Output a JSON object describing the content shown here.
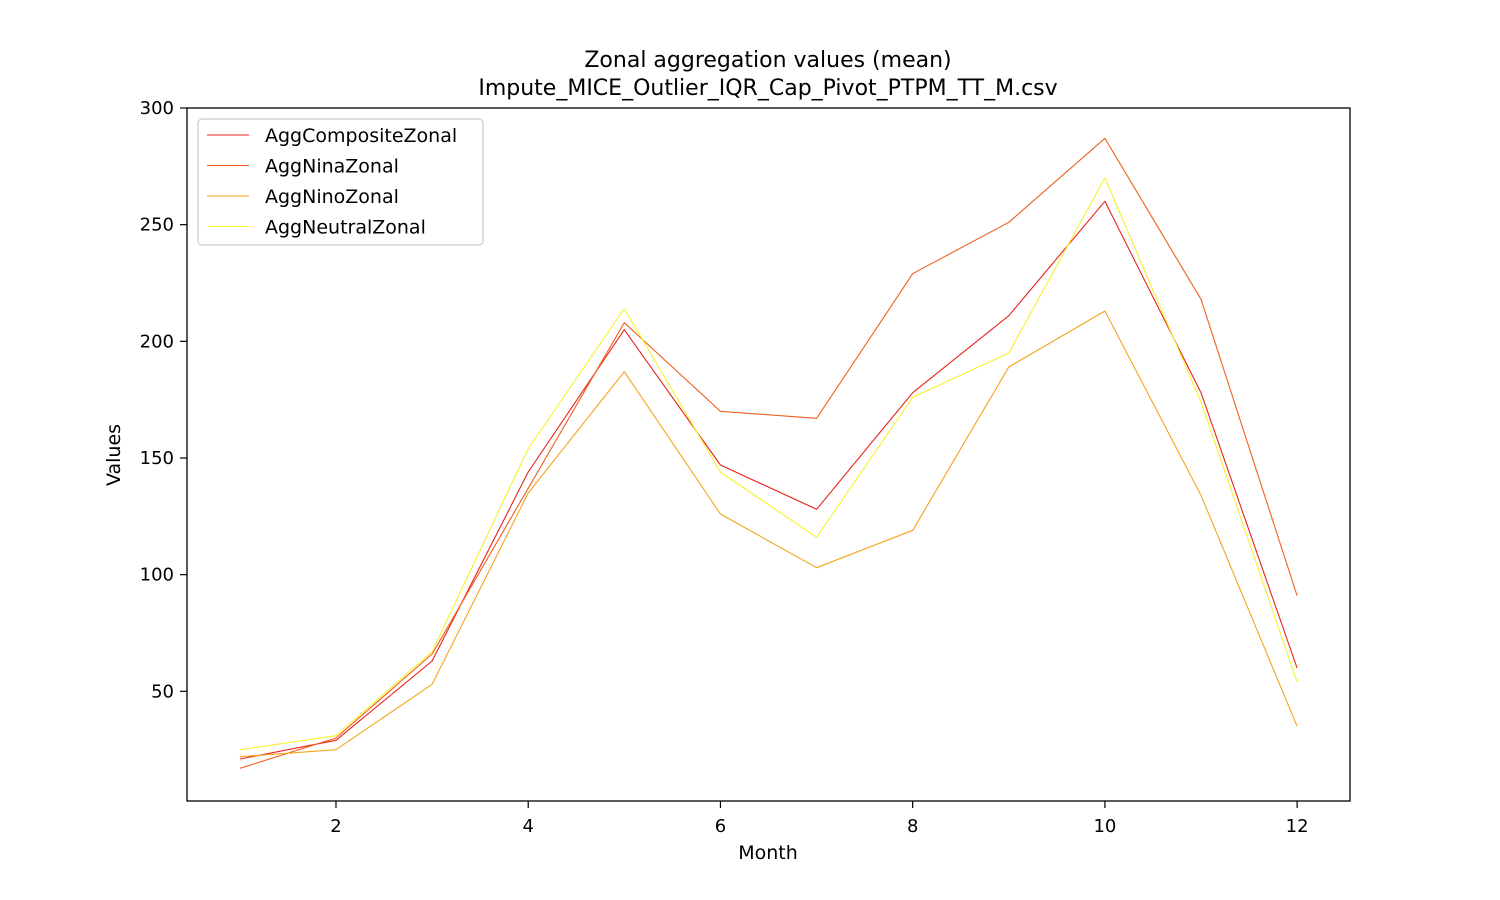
{
  "chart_data": {
    "type": "line",
    "title": "Zonal aggregation values (mean)",
    "subtitle": "Impute_MICE_Outlier_IQR_Cap_Pivot_PTPM_TT_M.csv",
    "xlabel": "Month",
    "ylabel": "Values",
    "xlim": [
      0.45,
      12.55
    ],
    "ylim": [
      3,
      300
    ],
    "xticks": [
      2,
      4,
      6,
      8,
      10,
      12
    ],
    "yticks": [
      50,
      100,
      150,
      200,
      250,
      300
    ],
    "grid": false,
    "legend_position": "top-left",
    "x": [
      1,
      2,
      3,
      4,
      5,
      6,
      7,
      8,
      9,
      10,
      11,
      12
    ],
    "series": [
      {
        "name": "AggCompositeZonal",
        "color": "#e8221c",
        "values": [
          21,
          29,
          63,
          144,
          205,
          147,
          128,
          178,
          211,
          260,
          178,
          60
        ]
      },
      {
        "name": "AggNinaZonal",
        "color": "#f06020",
        "values": [
          17,
          30,
          66,
          137,
          208,
          170,
          167,
          229,
          251,
          287,
          218,
          91
        ]
      },
      {
        "name": "AggNinoZonal",
        "color": "#f4a51e",
        "values": [
          22,
          25,
          53,
          135,
          187,
          126,
          103,
          119,
          189,
          213,
          134,
          35
        ]
      },
      {
        "name": "AggNeutralZonal",
        "color": "#f6f22c",
        "values": [
          25,
          31,
          67,
          154,
          214,
          144,
          116,
          176,
          195,
          270,
          174,
          54
        ]
      }
    ]
  }
}
